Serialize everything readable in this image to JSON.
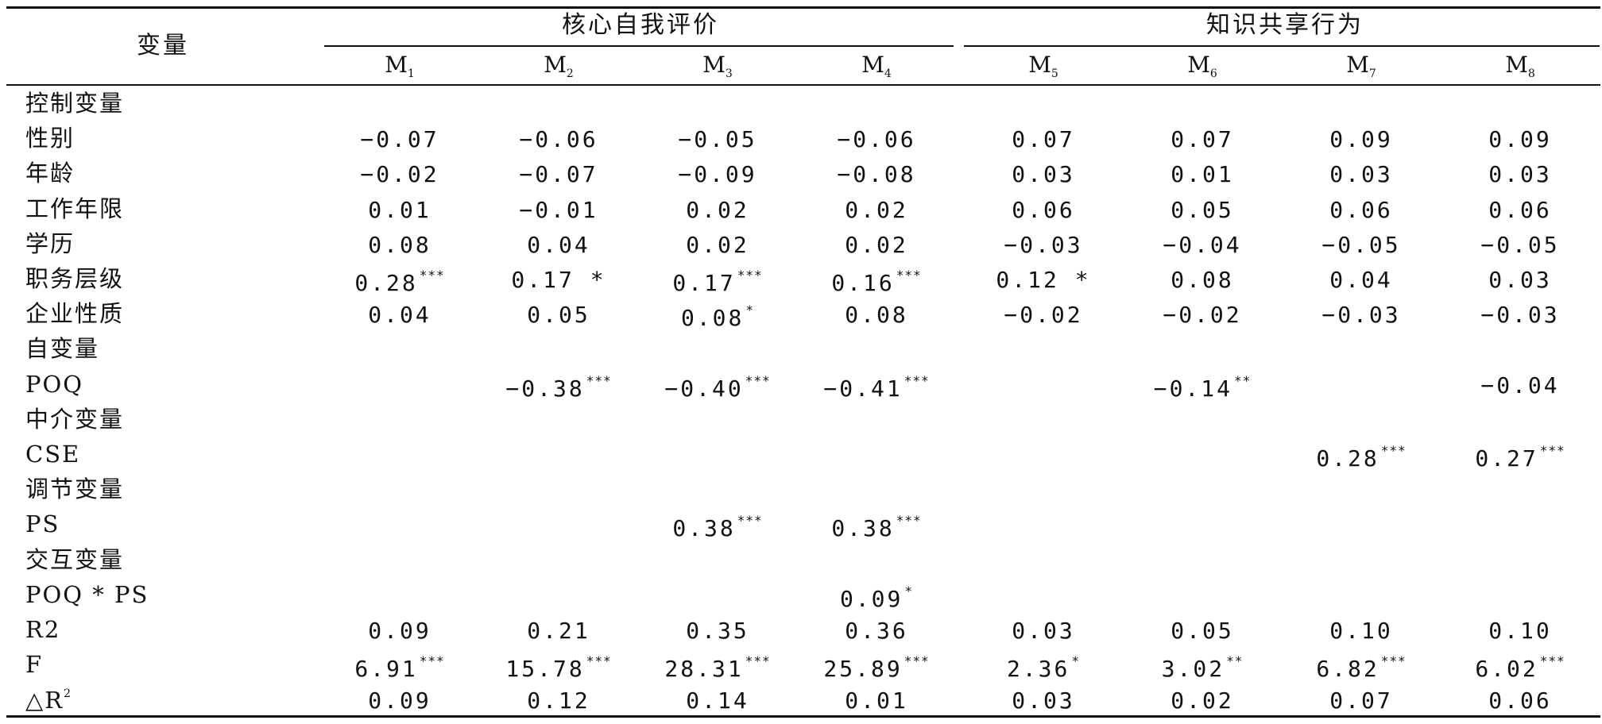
{
  "table": {
    "corner": "变量",
    "groups": [
      {
        "label": "核心自我评价",
        "models": [
          "M1",
          "M2",
          "M3",
          "M4"
        ]
      },
      {
        "label": "知识共享行为",
        "models": [
          "M5",
          "M6",
          "M7",
          "M8"
        ]
      }
    ],
    "models": [
      {
        "base": "M",
        "sub": "1"
      },
      {
        "base": "M",
        "sub": "2"
      },
      {
        "base": "M",
        "sub": "3"
      },
      {
        "base": "M",
        "sub": "4"
      },
      {
        "base": "M",
        "sub": "5"
      },
      {
        "base": "M",
        "sub": "6"
      },
      {
        "base": "M",
        "sub": "7"
      },
      {
        "base": "M",
        "sub": "8"
      }
    ],
    "rows": [
      {
        "label": "控制变量",
        "cells": []
      },
      {
        "label": "性别",
        "cells": [
          [
            "−0.07",
            ""
          ],
          [
            "−0.06",
            ""
          ],
          [
            "−0.05",
            ""
          ],
          [
            "−0.06",
            ""
          ],
          [
            "0.07",
            ""
          ],
          [
            "0.07",
            ""
          ],
          [
            "0.09",
            ""
          ],
          [
            "0.09",
            ""
          ]
        ]
      },
      {
        "label": "年龄",
        "cells": [
          [
            "−0.02",
            ""
          ],
          [
            "−0.07",
            ""
          ],
          [
            "−0.09",
            ""
          ],
          [
            "−0.08",
            ""
          ],
          [
            "0.03",
            ""
          ],
          [
            "0.01",
            ""
          ],
          [
            "0.03",
            ""
          ],
          [
            "0.03",
            ""
          ]
        ]
      },
      {
        "label": "工作年限",
        "cells": [
          [
            "0.01",
            ""
          ],
          [
            "−0.01",
            ""
          ],
          [
            "0.02",
            ""
          ],
          [
            "0.02",
            ""
          ],
          [
            "0.06",
            ""
          ],
          [
            "0.05",
            ""
          ],
          [
            "0.06",
            ""
          ],
          [
            "0.06",
            ""
          ]
        ]
      },
      {
        "label": "学历",
        "cells": [
          [
            "0.08",
            ""
          ],
          [
            "0.04",
            ""
          ],
          [
            "0.02",
            ""
          ],
          [
            "0.02",
            ""
          ],
          [
            "−0.03",
            ""
          ],
          [
            "−0.04",
            ""
          ],
          [
            "−0.05",
            ""
          ],
          [
            "−0.05",
            ""
          ]
        ]
      },
      {
        "label": "职务层级",
        "cells": [
          [
            "0.28",
            "***"
          ],
          [
            "0.17 *",
            ""
          ],
          [
            "0.17",
            "***"
          ],
          [
            "0.16",
            "***"
          ],
          [
            "0.12 *",
            ""
          ],
          [
            "0.08",
            ""
          ],
          [
            "0.04",
            ""
          ],
          [
            "0.03",
            ""
          ]
        ]
      },
      {
        "label": "企业性质",
        "cells": [
          [
            "0.04",
            ""
          ],
          [
            "0.05",
            ""
          ],
          [
            "0.08",
            "*"
          ],
          [
            "0.08",
            ""
          ],
          [
            "−0.02",
            ""
          ],
          [
            "−0.02",
            ""
          ],
          [
            "−0.03",
            ""
          ],
          [
            "−0.03",
            ""
          ]
        ]
      },
      {
        "label": "自变量",
        "cells": []
      },
      {
        "label": "POQ",
        "cells": [
          [
            "",
            ""
          ],
          [
            "−0.38",
            "***"
          ],
          [
            "−0.40",
            "***"
          ],
          [
            "−0.41",
            "***"
          ],
          [
            "",
            ""
          ],
          [
            "−0.14",
            "**"
          ],
          [
            "",
            ""
          ],
          [
            "−0.04",
            ""
          ]
        ]
      },
      {
        "label": "中介变量",
        "cells": []
      },
      {
        "label": "CSE",
        "cells": [
          [
            "",
            ""
          ],
          [
            "",
            ""
          ],
          [
            "",
            ""
          ],
          [
            "",
            ""
          ],
          [
            "",
            ""
          ],
          [
            "",
            ""
          ],
          [
            "0.28",
            "***"
          ],
          [
            "0.27",
            "***"
          ]
        ]
      },
      {
        "label": "调节变量",
        "cells": []
      },
      {
        "label": "PS",
        "cells": [
          [
            "",
            ""
          ],
          [
            "",
            ""
          ],
          [
            "0.38",
            "***"
          ],
          [
            "0.38",
            "***"
          ],
          [
            "",
            ""
          ],
          [
            "",
            ""
          ],
          [
            "",
            ""
          ],
          [
            "",
            ""
          ]
        ]
      },
      {
        "label": "交互变量",
        "cells": []
      },
      {
        "label": "POQ * PS",
        "cells": [
          [
            "",
            ""
          ],
          [
            "",
            ""
          ],
          [
            "",
            ""
          ],
          [
            "0.09",
            "*"
          ],
          [
            "",
            ""
          ],
          [
            "",
            ""
          ],
          [
            "",
            ""
          ],
          [
            "",
            ""
          ]
        ]
      },
      {
        "label": "R2",
        "cells": [
          [
            "0.09",
            ""
          ],
          [
            "0.21",
            ""
          ],
          [
            "0.35",
            ""
          ],
          [
            "0.36",
            ""
          ],
          [
            "0.03",
            ""
          ],
          [
            "0.05",
            ""
          ],
          [
            "0.10",
            ""
          ],
          [
            "0.10",
            ""
          ]
        ]
      },
      {
        "label": "F",
        "cells": [
          [
            "6.91",
            "***"
          ],
          [
            "15.78",
            "***"
          ],
          [
            "28.31",
            "***"
          ],
          [
            "25.89",
            "***"
          ],
          [
            "2.36",
            "*"
          ],
          [
            "3.02",
            "**"
          ],
          [
            "6.82",
            "***"
          ],
          [
            "6.02",
            "***"
          ]
        ]
      },
      {
        "label": "△R",
        "label_sup": "2",
        "cells": [
          [
            "0.09",
            ""
          ],
          [
            "0.12",
            ""
          ],
          [
            "0.14",
            ""
          ],
          [
            "0.01",
            ""
          ],
          [
            "0.03",
            ""
          ],
          [
            "0.02",
            ""
          ],
          [
            "0.07",
            ""
          ],
          [
            "0.06",
            ""
          ]
        ]
      }
    ]
  }
}
